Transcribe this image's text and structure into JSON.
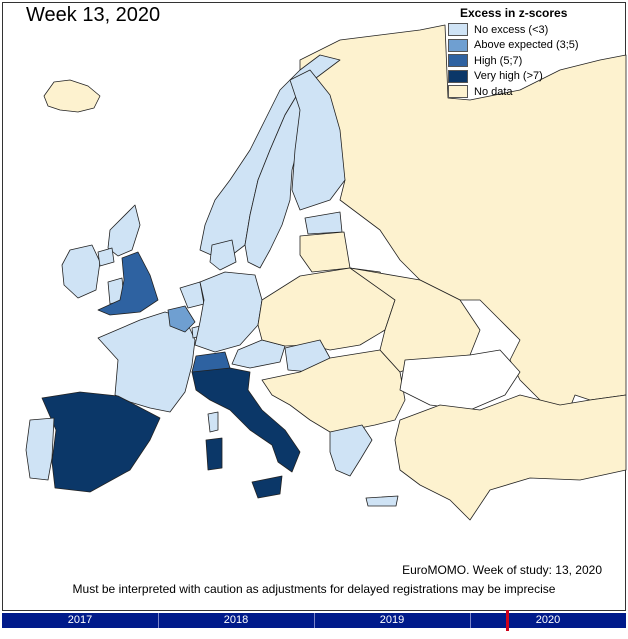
{
  "title": "Week 13, 2020",
  "legend": {
    "title": "Excess in z-scores",
    "items": [
      {
        "label": "No excess (<3)",
        "color": "#cfe3f5"
      },
      {
        "label": "Above expected (3;5)",
        "color": "#6f9fd1"
      },
      {
        "label": "High (5;7)",
        "color": "#2e62a1"
      },
      {
        "label": "Very high (>7)",
        "color": "#0b3768"
      },
      {
        "label": "No data",
        "color": "#fdf2cf"
      }
    ]
  },
  "colors": {
    "no_excess": "#cfe3f5",
    "above": "#6f9fd1",
    "high": "#2e62a1",
    "very_high": "#0b3768",
    "no_data": "#fdf2cf",
    "timeline": "#001a8a",
    "marker": "#d0021b"
  },
  "footnote": "EuroMOMO. Week of study: 13, 2020",
  "caution": "Must be interpreted with caution as adjustments for delayed registrations may be imprecise",
  "timeline": {
    "years": [
      "2017",
      "2018",
      "2019",
      "2020"
    ]
  }
}
